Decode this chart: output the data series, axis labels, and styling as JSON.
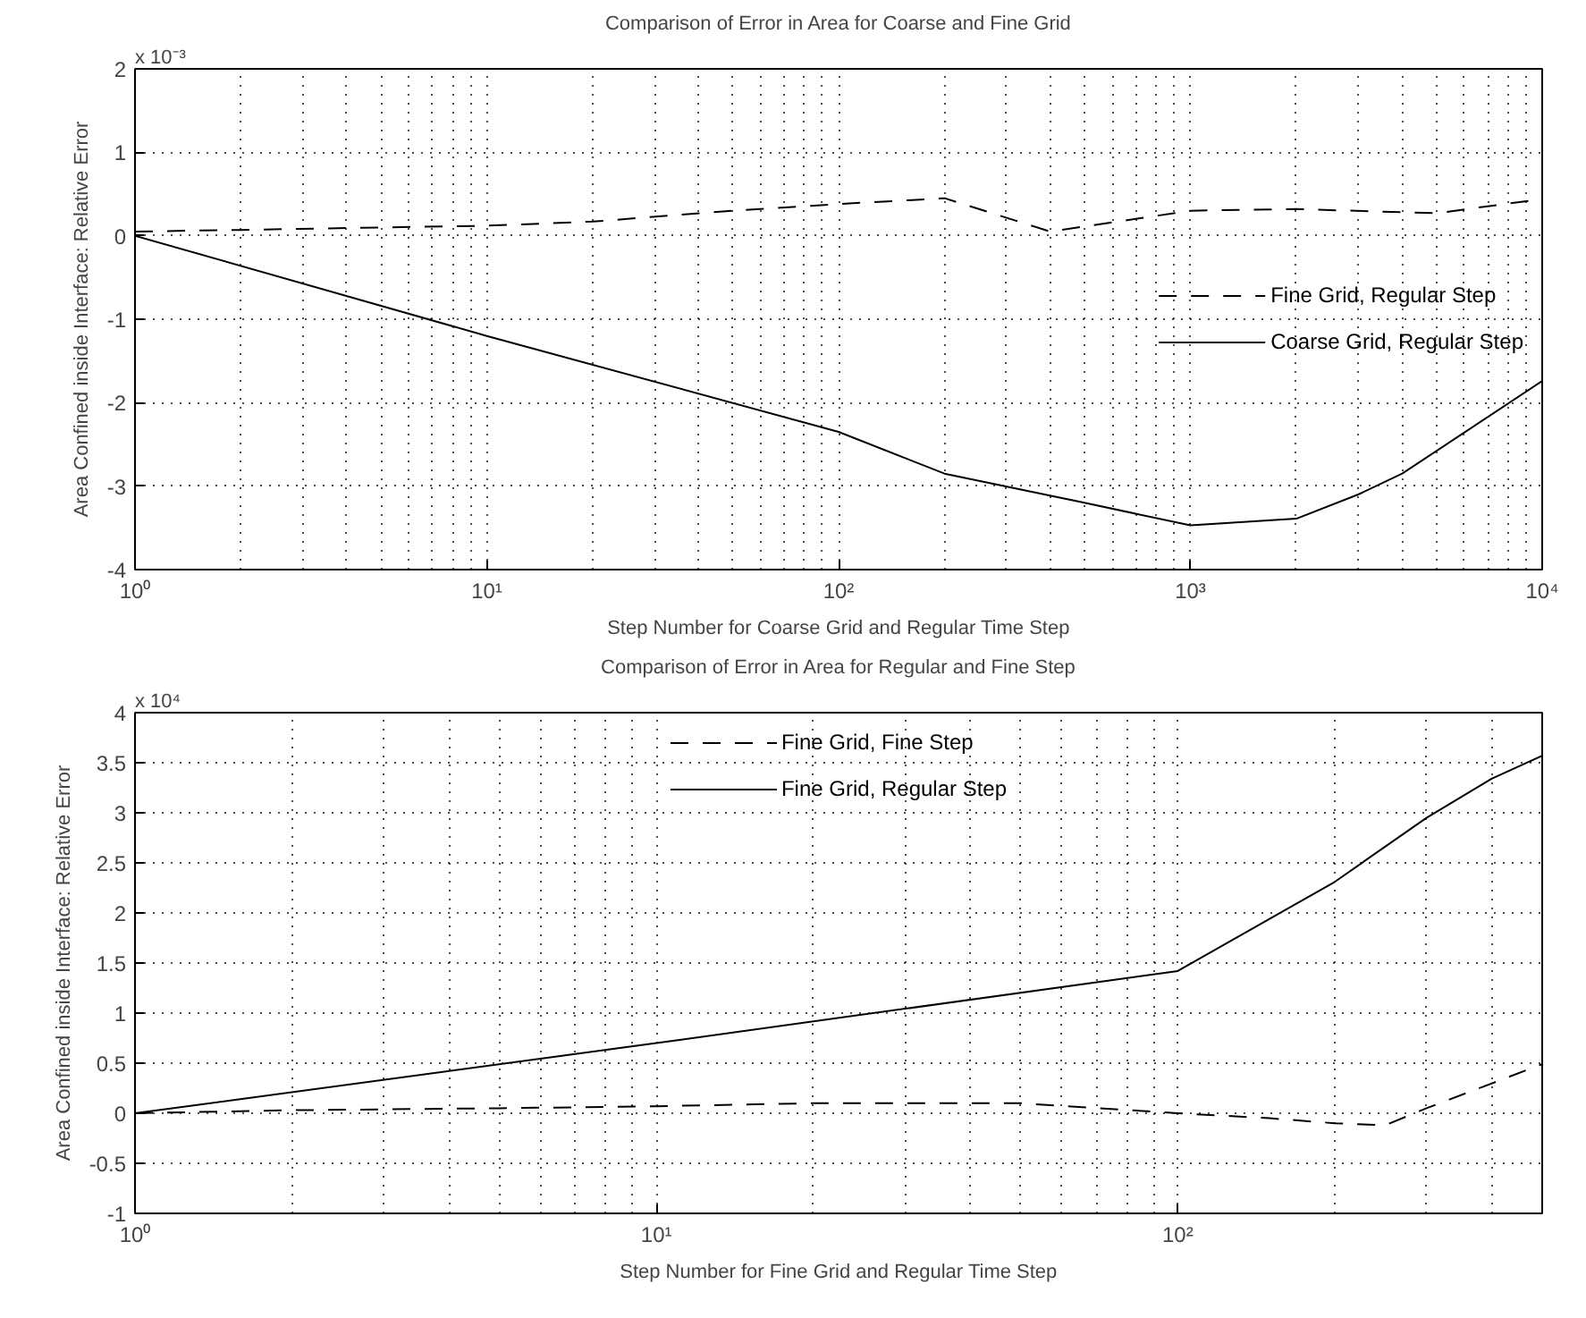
{
  "chart_data": [
    {
      "type": "line",
      "title": "Comparison of Error in Area for Coarse and Fine Grid",
      "xlabel": "Step Number for Coarse Grid and Regular Time Step",
      "ylabel": "Area Confined inside Interface: Relative Error",
      "annotations": [
        "x 10⁻³"
      ],
      "log": "x",
      "xlim": [
        1,
        10000
      ],
      "ylim": [
        -4,
        2
      ],
      "xticks": [
        {
          "value": 1,
          "label": "10⁰"
        },
        {
          "value": 10,
          "label": "10¹"
        },
        {
          "value": 100,
          "label": "10²"
        },
        {
          "value": 1000,
          "label": "10³"
        },
        {
          "value": 10000,
          "label": "10⁴"
        }
      ],
      "yticks": [
        -4,
        -3,
        -2,
        -1,
        0,
        1,
        2
      ],
      "grid": true,
      "legend": "right",
      "series": [
        {
          "name": "Fine Grid, Regular Step",
          "color": "#000000",
          "line_style": "dashed",
          "x": [
            1,
            2,
            5,
            10,
            20,
            50,
            100,
            200,
            400,
            1000,
            2000,
            5000,
            10000
          ],
          "values": [
            0.05,
            0.07,
            0.1,
            0.12,
            0.17,
            0.3,
            0.38,
            0.45,
            0.05,
            0.3,
            0.32,
            0.27,
            0.44
          ]
        },
        {
          "name": "Coarse Grid, Regular Step",
          "color": "#000000",
          "line_style": "solid",
          "x": [
            1,
            10,
            100,
            200,
            500,
            1000,
            2000,
            3000,
            4000,
            10000
          ],
          "values": [
            0,
            -1.2,
            -2.35,
            -2.85,
            -3.2,
            -3.47,
            -3.39,
            -3.1,
            -2.85,
            -1.74
          ]
        }
      ]
    },
    {
      "type": "line",
      "title": "Comparison of Error in Area for Regular and Fine Step",
      "xlabel": "Step Number for Fine Grid and Regular Time Step",
      "ylabel": "Area Confined inside Interface: Relative Error",
      "annotations": [
        "x 10⁴"
      ],
      "log": "x",
      "xlim": [
        1,
        500
      ],
      "ylim": [
        -1,
        4
      ],
      "xticks": [
        {
          "value": 1,
          "label": "10⁰"
        },
        {
          "value": 10,
          "label": "10¹"
        },
        {
          "value": 100,
          "label": "10²"
        }
      ],
      "yticks": [
        -1,
        -0.5,
        0,
        0.5,
        1,
        1.5,
        2,
        2.5,
        3,
        3.5,
        4
      ],
      "grid": true,
      "legend": "top",
      "series": [
        {
          "name": "Fine Grid, Fine Step",
          "color": "#000000",
          "line_style": "dashed",
          "x": [
            1,
            2,
            5,
            10,
            20,
            50,
            100,
            150,
            200,
            250,
            300,
            500
          ],
          "values": [
            0,
            0.03,
            0.05,
            0.07,
            0.1,
            0.1,
            0.0,
            -0.05,
            -0.1,
            -0.12,
            0.05,
            0.49
          ]
        },
        {
          "name": "Fine Grid, Regular Step",
          "color": "#000000",
          "line_style": "solid",
          "x": [
            1,
            10,
            100,
            200,
            300,
            400,
            500
          ],
          "values": [
            0,
            0.7,
            1.42,
            2.31,
            2.95,
            3.34,
            3.57
          ]
        }
      ]
    }
  ]
}
